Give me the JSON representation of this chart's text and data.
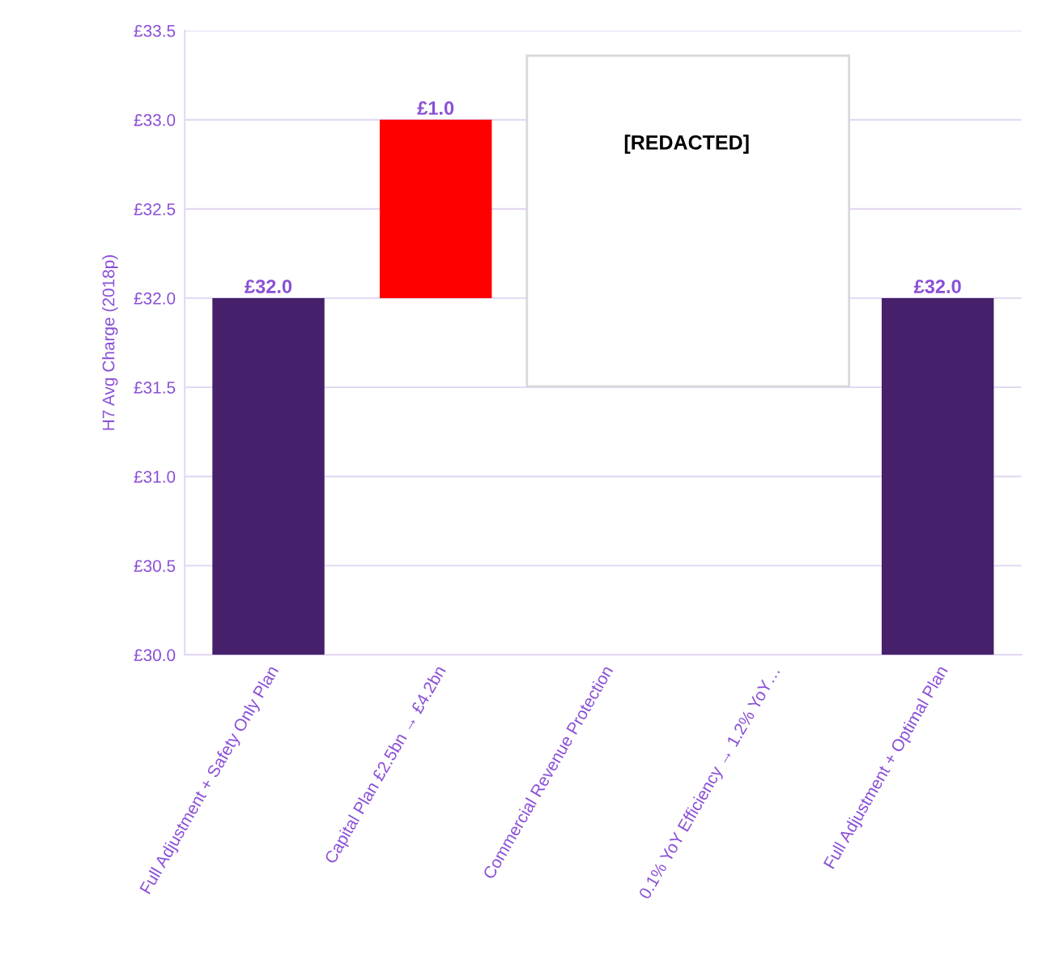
{
  "chart_data": {
    "type": "bar",
    "ylabel": "H7 Avg Charge (2018p)",
    "categories": [
      "Full Adjustment + Safety Only Plan",
      "Capital Plan £2.5bn → £4.2bn",
      "Commercial Revenue Protection",
      "0.1% YoY Efficiency → 1.2% YoY…",
      "Full Adjustment + Optimal Plan"
    ],
    "values": [
      2.0,
      1.0,
      null,
      null,
      2.0
    ],
    "base": [
      30.0,
      32.0,
      null,
      null,
      30.0
    ],
    "colors": [
      "#46206a",
      "#ff0000",
      null,
      null,
      "#46206a"
    ],
    "value_labels": [
      "£32.0",
      "£1.0",
      null,
      null,
      "£32.0"
    ],
    "ylim": [
      30.0,
      33.5
    ],
    "yticks": [
      {
        "value": 30.0,
        "label": "£30.0"
      },
      {
        "value": 30.5,
        "label": "£30.5"
      },
      {
        "value": 31.0,
        "label": "£31.0"
      },
      {
        "value": 31.5,
        "label": "£31.5"
      },
      {
        "value": 32.0,
        "label": "£32.0"
      },
      {
        "value": 32.5,
        "label": "£32.5"
      },
      {
        "value": 33.0,
        "label": "£33.0"
      },
      {
        "value": 33.5,
        "label": "£33.5"
      }
    ],
    "grid": "y",
    "annotations": [
      "[REDACTED]"
    ]
  }
}
